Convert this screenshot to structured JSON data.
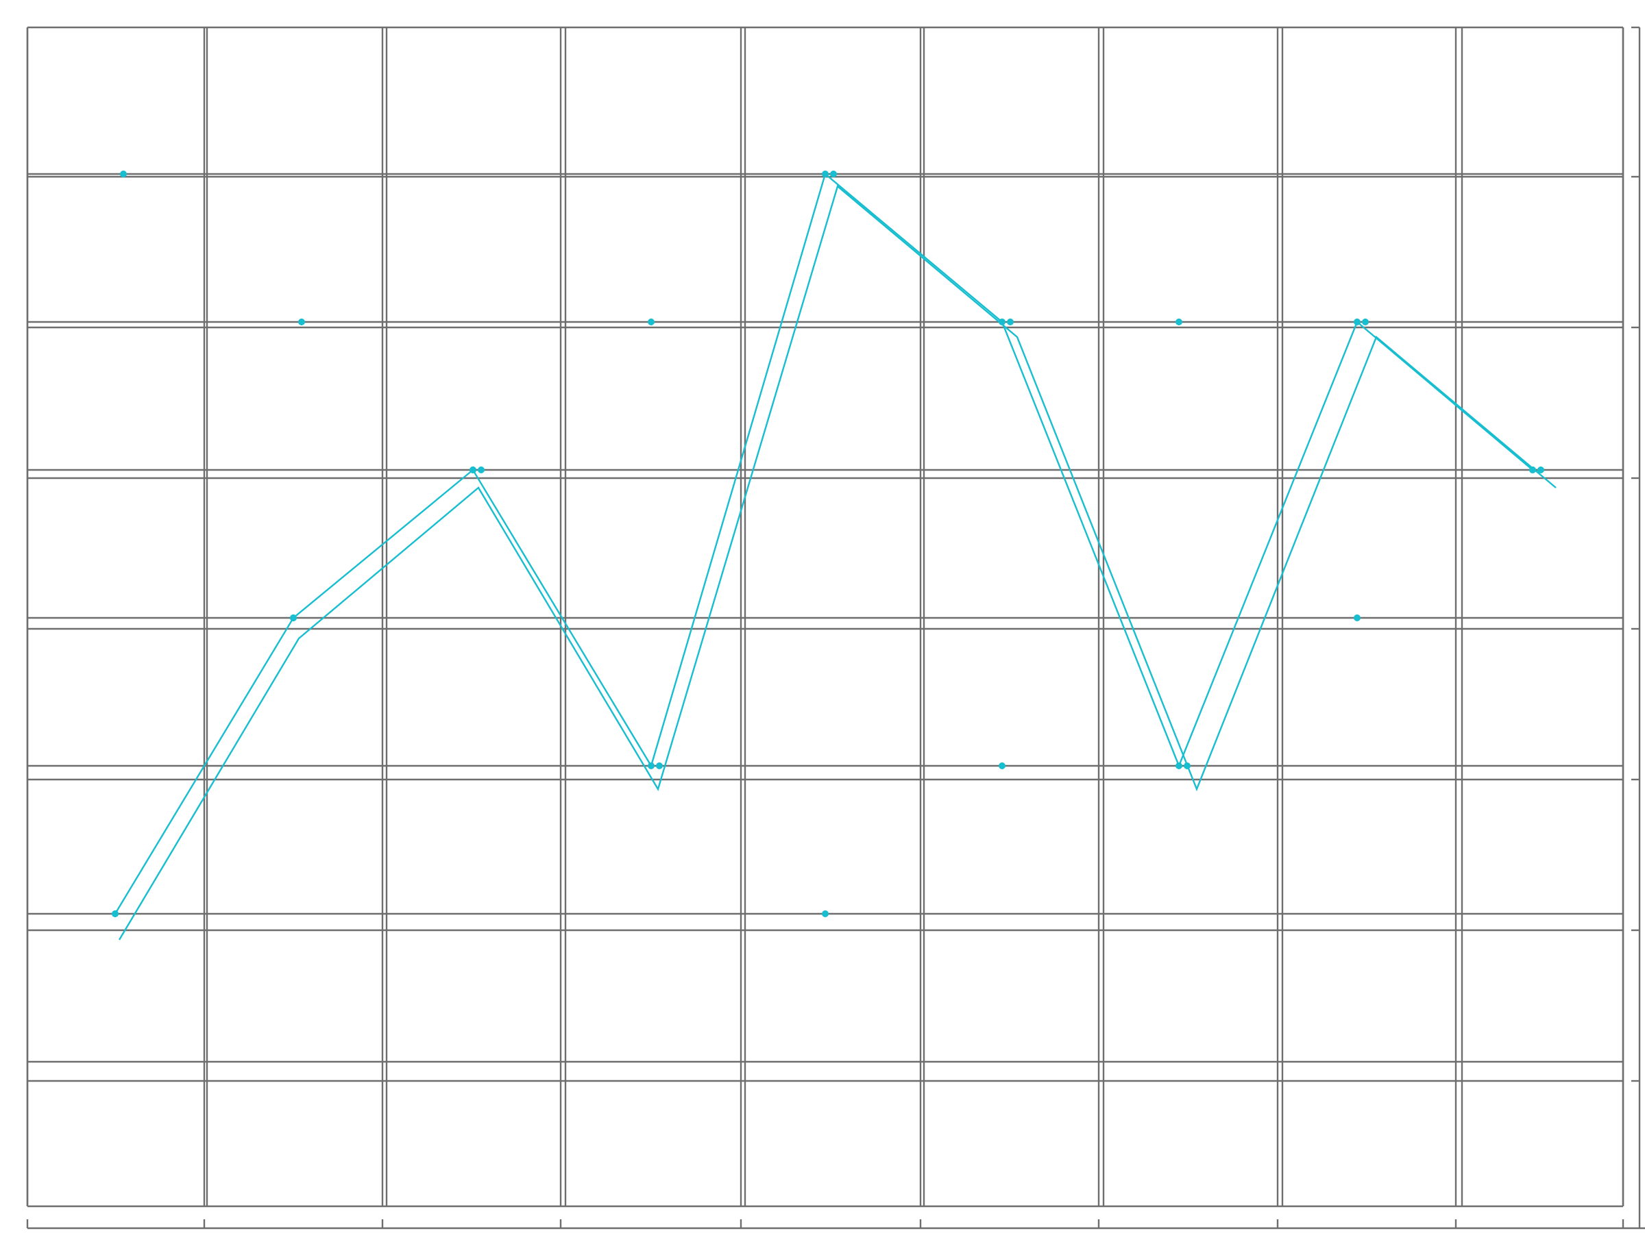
{
  "chart_data": {
    "type": "line",
    "title": "",
    "xlabel": "",
    "ylabel": "",
    "grid": true,
    "x_ticks": [
      "",
      "",
      "",
      "",
      "",
      "",
      "",
      "",
      "",
      ""
    ],
    "y_ticks": [
      "",
      "",
      "",
      "",
      "",
      "",
      "",
      ""
    ],
    "ylim": [
      0,
      7
    ],
    "series": [
      {
        "values": [
          1,
          3,
          4,
          2,
          6,
          5,
          2,
          5,
          4
        ]
      },
      {
        "values": [
          1,
          3,
          4,
          2,
          6,
          5,
          2,
          5,
          4
        ]
      }
    ],
    "markers": [
      {
        "values": [
          6,
          5,
          4,
          2,
          6,
          5,
          2,
          5,
          4
        ]
      },
      {
        "values": [
          1,
          3,
          4,
          5,
          1,
          2,
          5,
          3,
          4
        ]
      }
    ],
    "colors": {
      "series": "#17becf",
      "grid": "#6e6e6e",
      "background": "#ffffff"
    }
  }
}
